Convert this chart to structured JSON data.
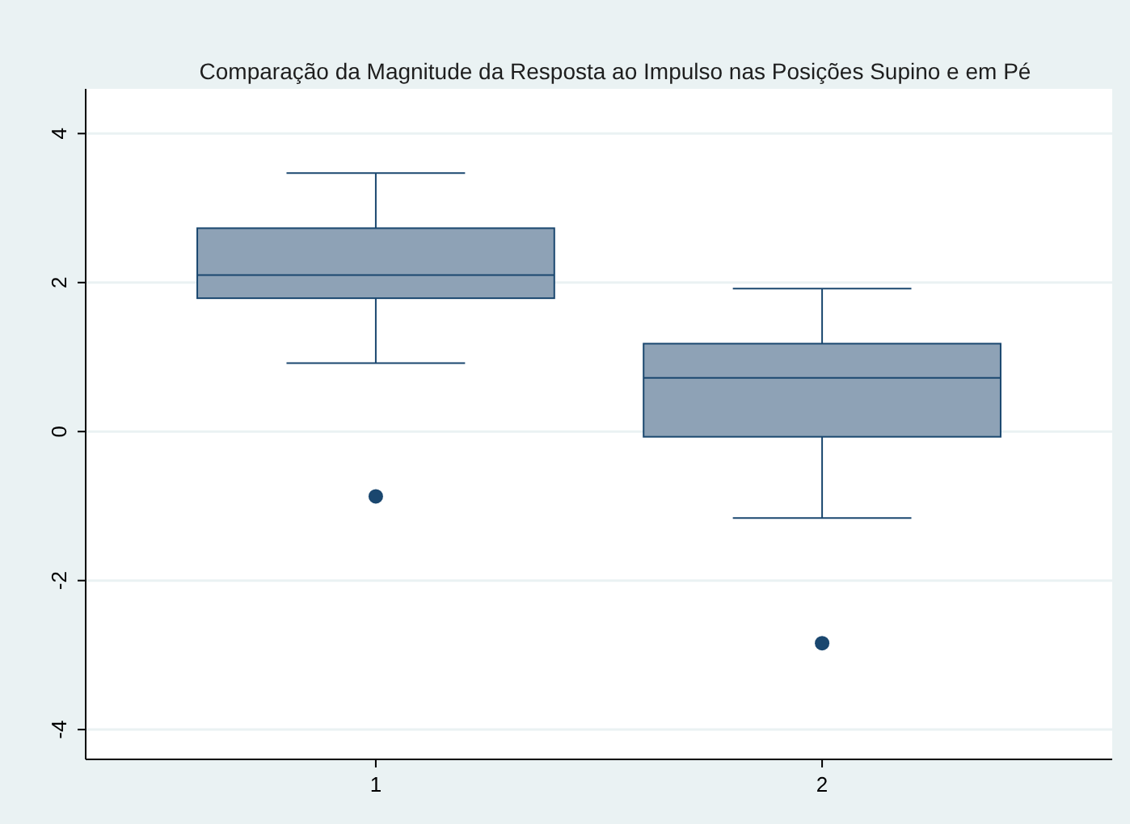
{
  "chart_data": {
    "type": "box",
    "title": "Comparação da Magnitude da Resposta ao Impulso nas Posições Supino e em Pé",
    "categories": [
      "1",
      "2"
    ],
    "color": "#8ea2b6",
    "boxes": [
      {
        "low": 0.92,
        "q1": 1.79,
        "median": 2.1,
        "q3": 2.73,
        "high": 3.47,
        "outliers": [
          -0.87
        ]
      },
      {
        "low": -1.16,
        "q1": -0.07,
        "median": 0.72,
        "q3": 1.18,
        "high": 1.92,
        "outliers": [
          -2.84
        ]
      }
    ],
    "ylim": [
      -4.4,
      4.6
    ],
    "yticks": [
      -4,
      -2,
      0,
      2,
      4
    ],
    "grid": "y"
  }
}
